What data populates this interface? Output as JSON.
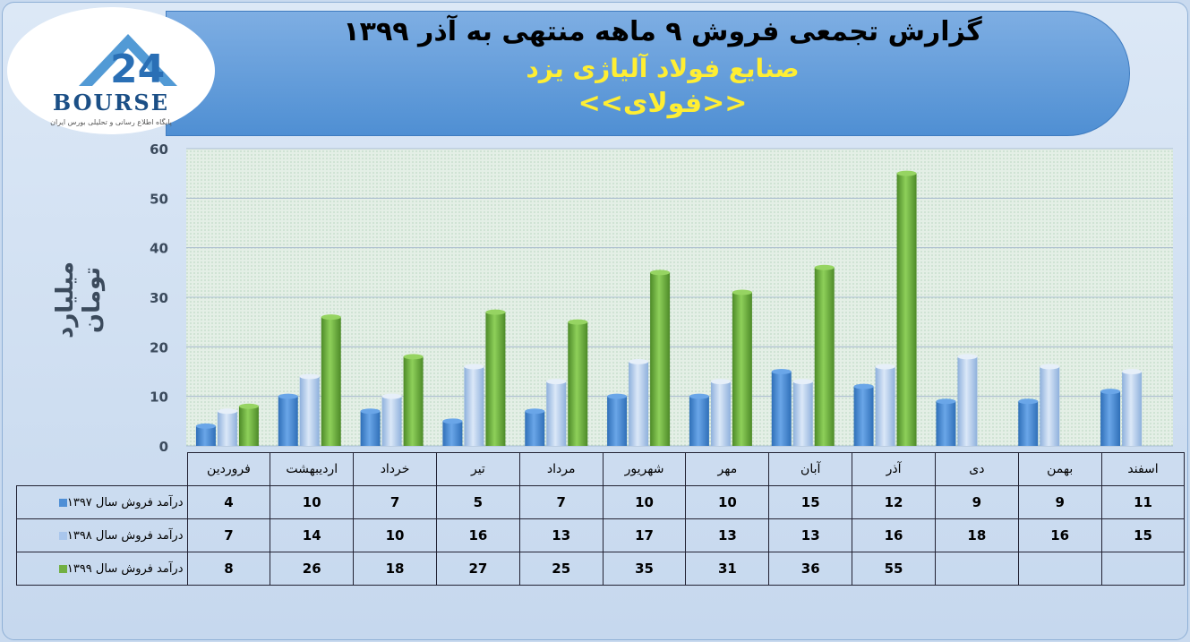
{
  "header": {
    "line1": "گزارش تجمعی فروش ۹ ماهه منتهی به آذر ۱۳۹۹",
    "line2": "صنایع فولاد آلیاژی یزد",
    "line3": "<<فولای>>"
  },
  "logo": {
    "word": "BOURSE",
    "subtitle": "پایگاه اطلاع رسانی و تحلیلی بورس ایران"
  },
  "colors": {
    "s1397": "#4f8fd6",
    "s1398": "#a9c6ec",
    "s1399": "#72b043",
    "accent": "#4f8fd3",
    "title_yellow": "#ffee33"
  },
  "chart_data": {
    "type": "bar",
    "ylabel": "میلیارد تومان",
    "ylim": [
      0,
      60
    ],
    "yticks": [
      0,
      10,
      20,
      30,
      40,
      50,
      60
    ],
    "grid": true,
    "categories": [
      "فروردین",
      "اردیبهشت",
      "خرداد",
      "تیر",
      "مرداد",
      "شهریور",
      "مهر",
      "آبان",
      "آذر",
      "دی",
      "بهمن",
      "اسفند"
    ],
    "series": [
      {
        "name": "درآمد فروش سال ۱۳۹۷",
        "values": [
          4,
          10,
          7,
          5,
          7,
          10,
          10,
          15,
          12,
          9,
          9,
          11
        ]
      },
      {
        "name": "درآمد فروش سال ۱۳۹۸",
        "values": [
          7,
          14,
          10,
          16,
          13,
          17,
          13,
          13,
          16,
          18,
          16,
          15
        ]
      },
      {
        "name": "درآمد فروش سال ۱۳۹۹",
        "values": [
          8,
          26,
          18,
          27,
          25,
          35,
          31,
          36,
          55,
          null,
          null,
          null
        ]
      }
    ]
  }
}
